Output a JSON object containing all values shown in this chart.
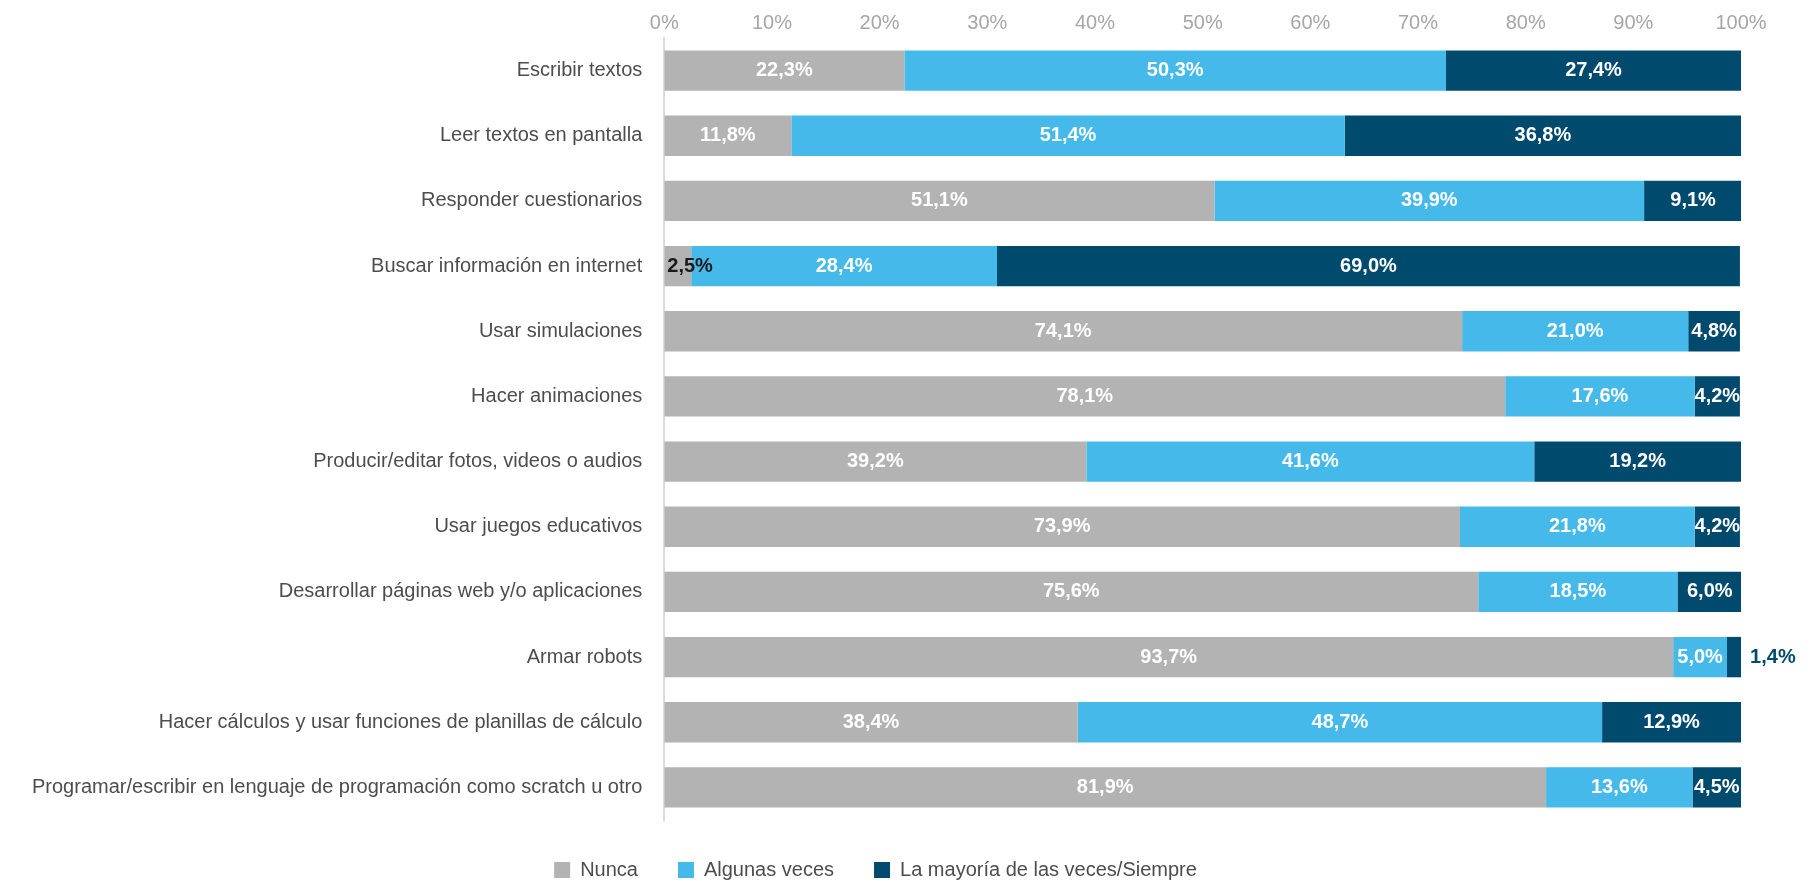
{
  "chart_data": {
    "type": "bar",
    "orientation": "horizontal",
    "stacked": true,
    "categories": [
      "Escribir textos",
      "Leer textos en pantalla",
      "Responder cuestionarios",
      "Buscar información en internet",
      "Usar simulaciones",
      "Hacer animaciones",
      "Producir/editar fotos, videos o audios",
      "Usar juegos educativos",
      "Desarrollar páginas web y/o aplicaciones",
      "Armar robots",
      "Hacer cálculos y usar funciones de planillas de cálculo",
      "Programar/escribir en lenguaje de programación como scratch u otro"
    ],
    "series": [
      {
        "name": "Nunca",
        "color": "#b3b3b3",
        "values": [
          22.3,
          11.8,
          51.1,
          2.5,
          74.1,
          78.1,
          39.2,
          73.9,
          75.6,
          93.7,
          38.4,
          81.9
        ],
        "value_labels": [
          "22,3%",
          "11,8%",
          "51,1%",
          "2,5%",
          "74,1%",
          "78,1%",
          "39,2%",
          "73,9%",
          "75,6%",
          "93,7%",
          "38,4%",
          "81,9%"
        ]
      },
      {
        "name": "Algunas veces",
        "color": "#45b9ea",
        "values": [
          50.3,
          51.4,
          39.9,
          28.4,
          21.0,
          17.6,
          41.6,
          21.8,
          18.5,
          5.0,
          48.7,
          13.6
        ],
        "value_labels": [
          "50,3%",
          "51,4%",
          "39,9%",
          "28,4%",
          "21,0%",
          "17,6%",
          "41,6%",
          "21,8%",
          "18,5%",
          "5,0%",
          "48,7%",
          "13,6%"
        ]
      },
      {
        "name": "La mayoría de las veces/Siempre",
        "color": "#004a6d",
        "values": [
          27.4,
          36.8,
          9.1,
          69.0,
          4.8,
          4.2,
          19.2,
          4.2,
          6.0,
          1.4,
          12.9,
          4.5
        ],
        "value_labels": [
          "27,4%",
          "36,8%",
          "9,1%",
          "69,0%",
          "4,8%",
          "4,2%",
          "19,2%",
          "4,2%",
          "6,0%",
          "1,4%",
          "12,9%",
          "4,5%"
        ]
      }
    ],
    "xlim": [
      0,
      100
    ],
    "xticks": [
      {
        "value": 0,
        "label": "0%"
      },
      {
        "value": 10,
        "label": "10%"
      },
      {
        "value": 20,
        "label": "20%"
      },
      {
        "value": 30,
        "label": "30%"
      },
      {
        "value": 40,
        "label": "40%"
      },
      {
        "value": 50,
        "label": "50%"
      },
      {
        "value": 60,
        "label": "60%"
      },
      {
        "value": 70,
        "label": "70%"
      },
      {
        "value": 80,
        "label": "80%"
      },
      {
        "value": 90,
        "label": "90%"
      },
      {
        "value": 100,
        "label": "100%"
      }
    ],
    "grid": false,
    "legend": "bottom"
  }
}
